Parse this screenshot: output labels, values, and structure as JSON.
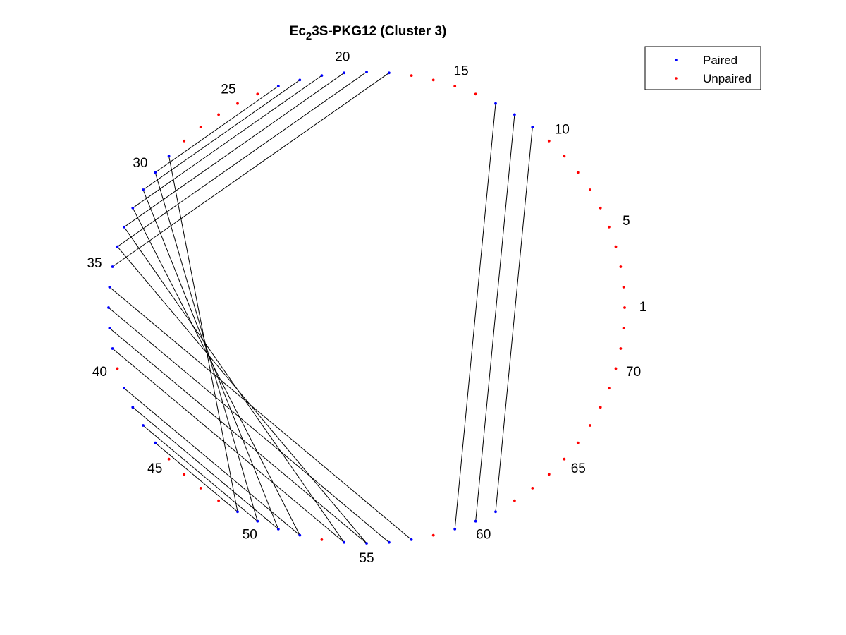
{
  "chart_data": {
    "type": "scatter",
    "title": "Ec_23S-PKG12 (Cluster 3)",
    "xlabel": "",
    "ylabel": "",
    "n_nucleotides": 72,
    "grid": false,
    "axes_visible": false,
    "legend_position": "top-right",
    "tick_labels": [
      "1",
      "5",
      "10",
      "15",
      "20",
      "25",
      "30",
      "35",
      "40",
      "45",
      "50",
      "55",
      "60",
      "65",
      "70"
    ],
    "tick_positions": [
      1,
      5,
      10,
      15,
      20,
      25,
      30,
      35,
      40,
      45,
      50,
      55,
      60,
      65,
      70
    ],
    "series": [
      {
        "name": "Paired",
        "color": "#0000ff",
        "nucleotides": [
          11,
          12,
          13,
          18,
          19,
          20,
          21,
          22,
          23,
          29,
          30,
          31,
          32,
          33,
          34,
          35,
          36,
          37,
          38,
          39,
          41,
          42,
          43,
          44,
          49,
          50,
          51,
          52,
          54,
          55,
          56,
          57,
          59,
          60,
          61
        ]
      },
      {
        "name": "Unpaired",
        "color": "#ff0000",
        "nucleotides": [
          1,
          2,
          3,
          4,
          5,
          6,
          7,
          8,
          9,
          10,
          14,
          15,
          16,
          17,
          24,
          25,
          26,
          27,
          28,
          40,
          45,
          46,
          47,
          48,
          53,
          58,
          62,
          63,
          64,
          65,
          66,
          67,
          68,
          69,
          70,
          71,
          72
        ]
      }
    ],
    "pairs": [
      [
        11,
        61
      ],
      [
        12,
        60
      ],
      [
        13,
        59
      ],
      [
        18,
        35
      ],
      [
        19,
        34
      ],
      [
        20,
        33
      ],
      [
        21,
        32
      ],
      [
        22,
        31
      ],
      [
        23,
        30
      ],
      [
        29,
        49
      ],
      [
        30,
        50
      ],
      [
        31,
        51
      ],
      [
        32,
        52
      ],
      [
        33,
        54
      ],
      [
        34,
        55
      ],
      [
        36,
        57
      ],
      [
        37,
        56
      ],
      [
        38,
        55
      ],
      [
        39,
        54
      ],
      [
        41,
        52
      ],
      [
        42,
        51
      ],
      [
        43,
        50
      ],
      [
        44,
        49
      ]
    ]
  }
}
